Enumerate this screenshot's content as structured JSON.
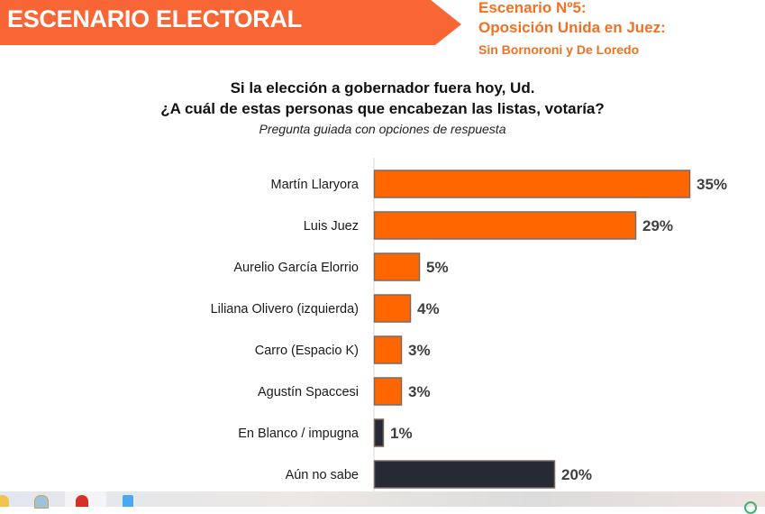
{
  "header": {
    "banner_title": "ESCENARIO ELECTORAL",
    "scenario_line1": "Escenario Nº5:",
    "scenario_line2": "Oposición Unida en Juez:",
    "scenario_line3": "Sin Bornoroni y De Loredo",
    "accent_color": "#f96636"
  },
  "question": {
    "line1": "Si la elección a gobernador fuera hoy, Ud.",
    "line2": "¿A cuál de estas personas que encabezan las listas, votaría?",
    "subtitle": "Pregunta guiada con opciones de respuesta"
  },
  "chart_data": {
    "type": "bar",
    "orientation": "horizontal",
    "title": "Si la elección a gobernador fuera hoy, Ud. ¿A cuál de estas personas que encabezan las listas, votaría?",
    "subtitle": "Pregunta guiada con opciones de respuesta",
    "xlabel": "",
    "ylabel": "",
    "xlim": [
      0,
      35
    ],
    "grid": false,
    "legend": "none",
    "unit": "%",
    "categories": [
      "Martín Llaryora",
      "Luis Juez",
      "Aurelio García Elorrio",
      "Liliana Olivero (izquierda)",
      "Carro (Espacio K)",
      "Agustín Spaccesi",
      "En Blanco / impugna",
      "Aún no sabe"
    ],
    "values": [
      35,
      29,
      5,
      4,
      3,
      3,
      1,
      20
    ],
    "labels": [
      "35%",
      "29%",
      "5%",
      "4%",
      "3%",
      "3%",
      "1%",
      "20%"
    ],
    "colors": [
      "#ff6600",
      "#ff6600",
      "#ff6600",
      "#ff6600",
      "#ff6600",
      "#ff6600",
      "#262a35",
      "#262a35"
    ]
  },
  "taskbar": {
    "icons": [
      "folder-icon",
      "paint-icon",
      "chrome-icon",
      "app-icon",
      "status-icon"
    ]
  }
}
